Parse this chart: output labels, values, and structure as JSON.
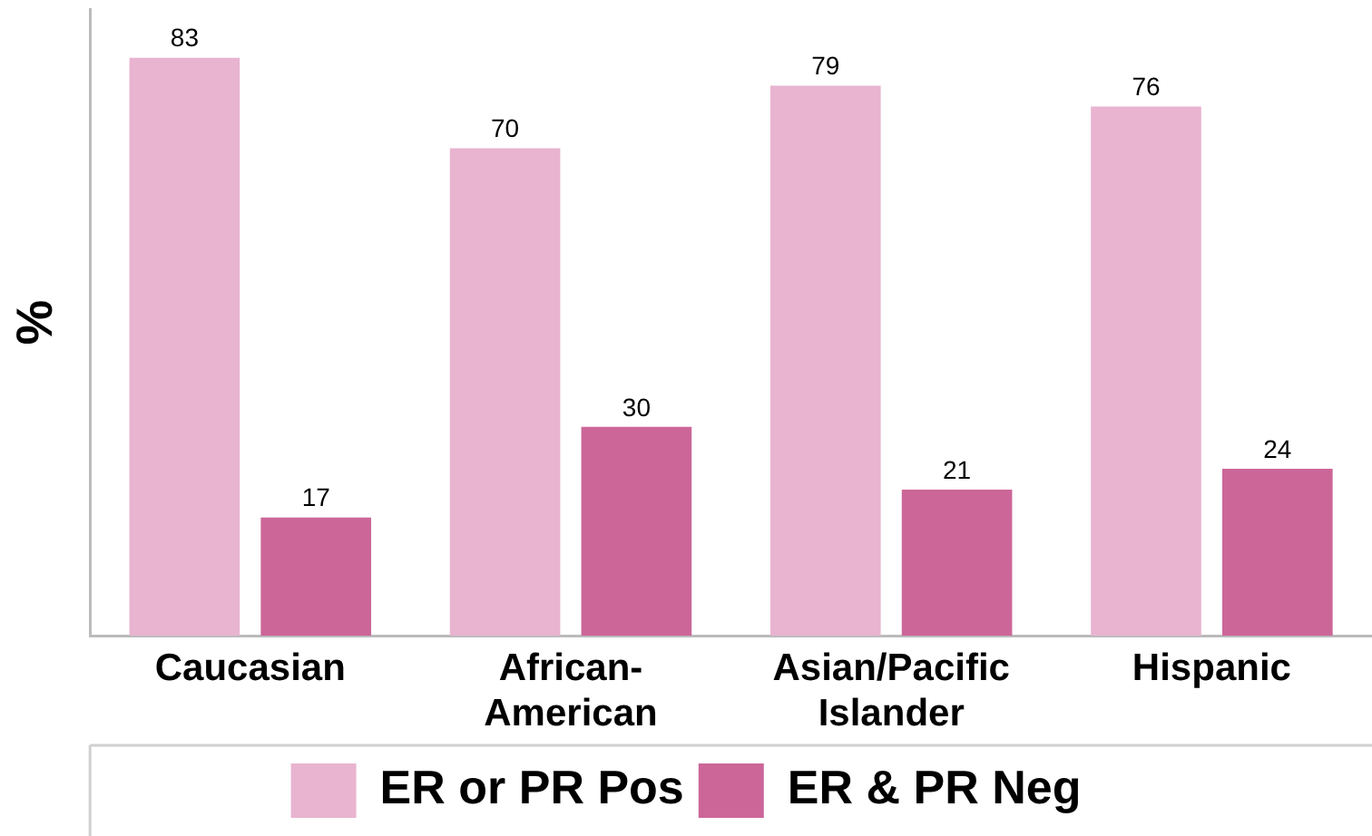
{
  "chart_data": {
    "type": "bar",
    "ylabel": "%",
    "categories": [
      "Caucasian",
      "African-American",
      "Asian/Pacific Islander",
      "Hispanic"
    ],
    "series": [
      {
        "name": "ER or PR Pos",
        "color": "#e8b4d0",
        "values": [
          83,
          70,
          79,
          76
        ]
      },
      {
        "name": "ER & PR Neg",
        "color": "#cc6699",
        "values": [
          17,
          30,
          21,
          24
        ]
      }
    ],
    "ylim": [
      0,
      90
    ],
    "tick_labels": "x",
    "grid": false,
    "legend": "bottom",
    "data_labels": true
  }
}
